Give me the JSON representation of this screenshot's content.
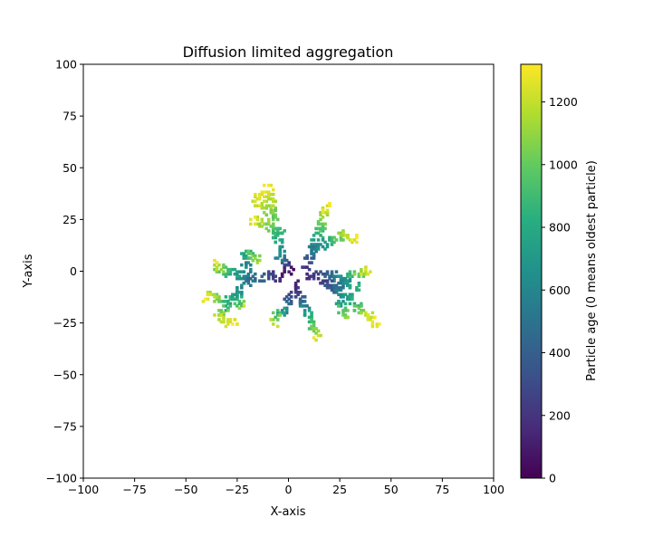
{
  "chart_data": {
    "type": "scatter",
    "title": "Diffusion limited aggregation",
    "xlabel": "X-axis",
    "ylabel": "Y-axis",
    "xlim": [
      -100,
      100
    ],
    "ylim": [
      -100,
      100
    ],
    "xticks": [
      -100,
      -75,
      -50,
      -25,
      0,
      25,
      50,
      75,
      100
    ],
    "yticks": [
      -100,
      -75,
      -50,
      -25,
      0,
      25,
      50,
      75,
      100
    ],
    "grid": false,
    "colormap": "viridis",
    "colorbar": {
      "label": "Particle age (0 means oldest particle)",
      "range": [
        0,
        1320
      ],
      "ticks": [
        0,
        200,
        400,
        600,
        800,
        1000,
        1200
      ]
    },
    "arms": [
      {
        "points": [
          [
            0,
            0
          ],
          [
            -4,
            8
          ],
          [
            -6,
            18
          ],
          [
            -7,
            26
          ],
          [
            -9,
            34
          ],
          [
            -10,
            41
          ]
        ],
        "age": [
          0,
          600,
          850,
          1000,
          1150,
          1300
        ]
      },
      {
        "points": [
          [
            -4,
            18
          ],
          [
            -12,
            24
          ],
          [
            -18,
            25
          ]
        ],
        "age": [
          800,
          1100,
          1300
        ]
      },
      {
        "points": [
          [
            -7,
            28
          ],
          [
            -16,
            33
          ],
          [
            -14,
            38
          ]
        ],
        "age": [
          1000,
          1200,
          1310
        ]
      },
      {
        "points": [
          [
            8,
            2
          ],
          [
            12,
            12
          ],
          [
            15,
            20
          ],
          [
            17,
            29
          ],
          [
            19,
            32
          ]
        ],
        "age": [
          200,
          600,
          900,
          1150,
          1300
        ]
      },
      {
        "points": [
          [
            12,
            10
          ],
          [
            20,
            15
          ],
          [
            27,
            18
          ],
          [
            33,
            15
          ]
        ],
        "age": [
          500,
          850,
          1100,
          1300
        ]
      },
      {
        "points": [
          [
            10,
            -2
          ],
          [
            20,
            -2
          ],
          [
            28,
            -3
          ],
          [
            34,
            -1
          ],
          [
            39,
            1
          ]
        ],
        "age": [
          150,
          450,
          750,
          1050,
          1300
        ]
      },
      {
        "points": [
          [
            22,
            -8
          ],
          [
            28,
            -12
          ],
          [
            34,
            -17
          ],
          [
            38,
            -21
          ],
          [
            43,
            -25
          ]
        ],
        "age": [
          400,
          700,
          950,
          1200,
          1320
        ]
      },
      {
        "points": [
          [
            24,
            -10
          ],
          [
            26,
            -18
          ],
          [
            28,
            -22
          ]
        ],
        "age": [
          550,
          900,
          1100
        ]
      },
      {
        "points": [
          [
            4,
            -6
          ],
          [
            6,
            -15
          ],
          [
            10,
            -22
          ],
          [
            13,
            -28
          ],
          [
            14,
            -31
          ]
        ],
        "age": [
          100,
          400,
          800,
          1050,
          1250
        ]
      },
      {
        "points": [
          [
            2,
            -10
          ],
          [
            -2,
            -18
          ],
          [
            -6,
            -21
          ],
          [
            -7,
            -25
          ]
        ],
        "age": [
          200,
          550,
          950,
          1200
        ]
      },
      {
        "points": [
          [
            -2,
            -2
          ],
          [
            -10,
            -2
          ],
          [
            -18,
            -3
          ],
          [
            -24,
            -2
          ],
          [
            -30,
            0
          ],
          [
            -35,
            2
          ],
          [
            -36,
            5
          ]
        ],
        "age": [
          50,
          300,
          500,
          650,
          850,
          1100,
          1300
        ]
      },
      {
        "points": [
          [
            -20,
            -4
          ],
          [
            -24,
            -10
          ],
          [
            -30,
            -13
          ],
          [
            -38,
            -12
          ],
          [
            -41,
            -13
          ]
        ],
        "age": [
          450,
          650,
          850,
          1150,
          1300
        ]
      },
      {
        "points": [
          [
            -26,
            -10
          ],
          [
            -24,
            -16
          ],
          [
            -22,
            -16
          ]
        ],
        "age": [
          650,
          900,
          1150
        ]
      },
      {
        "points": [
          [
            -28,
            -14
          ],
          [
            -32,
            -20
          ],
          [
            -34,
            -22
          ],
          [
            -30,
            -24
          ],
          [
            -26,
            -24
          ]
        ],
        "age": [
          750,
          1000,
          1150,
          1250,
          1310
        ]
      },
      {
        "points": [
          [
            -20,
            2
          ],
          [
            -22,
            8
          ],
          [
            -18,
            8
          ],
          [
            -15,
            4
          ]
        ],
        "age": [
          500,
          750,
          950,
          1100
        ]
      },
      {
        "points": [
          [
            15,
            -4
          ],
          [
            22,
            -8
          ],
          [
            28,
            -5
          ],
          [
            33,
            -8
          ]
        ],
        "age": [
          200,
          400,
          650,
          850
        ]
      }
    ]
  }
}
